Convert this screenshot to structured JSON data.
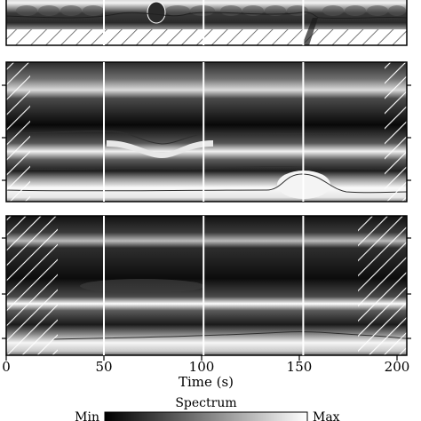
{
  "chart_data": {
    "type": "heatmap",
    "description_panels": 3,
    "x": {
      "label": "Time (s)",
      "range": [
        0,
        205
      ],
      "ticks": [
        0,
        50,
        100,
        150,
        200
      ],
      "tick_labels": [
        "0",
        "50",
        "100",
        "150",
        "200"
      ]
    },
    "event_markers": [
      50,
      101,
      152
    ],
    "panels": [
      {
        "id": "panel-1",
        "cone_of_influence_left": 5,
        "cone_of_influence_right": 200,
        "hatched_bottom_band": true,
        "bright_bands": [
          0.25,
          0.75
        ]
      },
      {
        "id": "panel-2",
        "cone_of_influence_left": 12,
        "cone_of_influence_right": 192,
        "bright_bands": [
          0.18,
          0.65,
          0.9
        ]
      },
      {
        "id": "panel-3",
        "cone_of_influence_left": 25,
        "cone_of_influence_right": 178,
        "bright_bands": [
          0.18,
          0.62,
          0.9
        ]
      }
    ],
    "colorbar": {
      "title": "Spectrum",
      "min_label": "Min",
      "max_label": "Max",
      "colormap": [
        "#000000",
        "#ffffff"
      ]
    }
  }
}
